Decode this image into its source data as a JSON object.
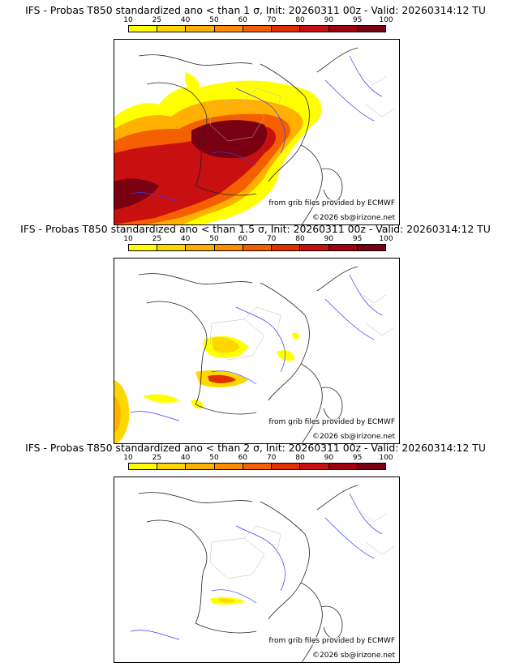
{
  "legend": {
    "ticks": [
      "10",
      "25",
      "40",
      "50",
      "60",
      "70",
      "80",
      "90",
      "95",
      "100"
    ],
    "colors": [
      "#ffff00",
      "#ffd700",
      "#ffb000",
      "#ff8c00",
      "#f46000",
      "#e03000",
      "#c81010",
      "#a00010",
      "#780010"
    ]
  },
  "panels": [
    {
      "title": "IFS - Probas T850  standardized ano < than 1 σ, Init: 20260311 00z - Valid: 20260314:12 TU",
      "source_credit": "from grib files provided by ECMWF",
      "copyright": "©2026 sb@irizone.net"
    },
    {
      "title": "IFS - Probas T850  standardized ano < than 1.5 σ, Init: 20260311 00z - Valid: 20260314:12 TU",
      "source_credit": "from grib files provided by ECMWF",
      "copyright": "©2026 sb@irizone.net"
    },
    {
      "title": "IFS - Probas T850  standardized ano < than 2 σ, Init: 20260311 00z - Valid: 20260314:12 TU",
      "source_credit": "from grib files provided by ECMWF",
      "copyright": "©2026 sb@irizone.net"
    }
  ]
}
